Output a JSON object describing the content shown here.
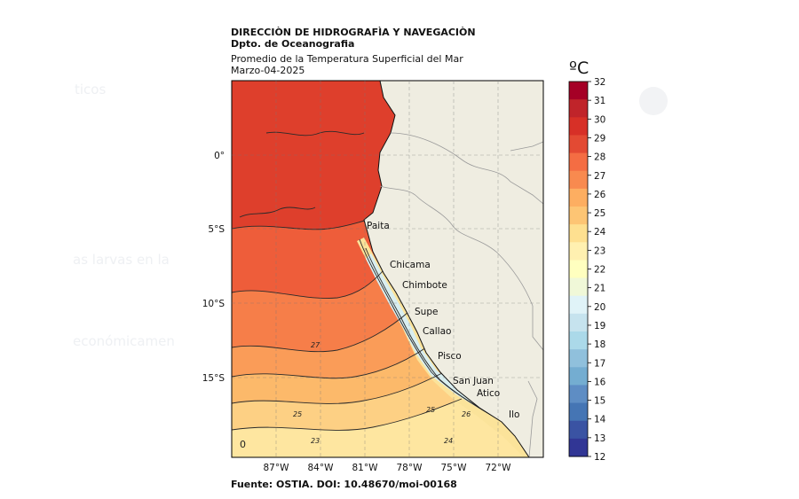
{
  "header": {
    "institution": "DIRECCIÒN DE HIDROGRAFÌA Y NAVEGACIÒN",
    "department": "Dpto. de Oceanografia",
    "product": "Promedio de la Temperatura Superficial del Mar",
    "date": "Marzo-04-2025"
  },
  "map": {
    "lon_range": [
      -90,
      -69
    ],
    "lat_range": [
      -20,
      5
    ],
    "lon_ticks": [
      "87°W",
      "84°W",
      "81°W",
      "78°W",
      "75°W",
      "72°W"
    ],
    "lat_ticks": [
      "0°",
      "5°S",
      "10°S",
      "15°S"
    ],
    "places": [
      "Paita",
      "Chicama",
      "Chimbote",
      "Supe",
      "Callao",
      "Pisco",
      "San Juan",
      "Atico",
      "Ilo"
    ],
    "contour_labels": [
      "27",
      "25",
      "25",
      "26",
      "23",
      "24",
      "0"
    ],
    "land_color": "#efede1",
    "border_color": "#9a9a9a"
  },
  "colorbar": {
    "unit": "ºC",
    "ticks": [
      "32",
      "31",
      "30",
      "29",
      "28",
      "27",
      "26",
      "25",
      "24",
      "23",
      "22",
      "21",
      "20",
      "19",
      "18",
      "17",
      "16",
      "15",
      "14",
      "13",
      "12"
    ],
    "colors": [
      "#a50026",
      "#c0242a",
      "#d73027",
      "#e34a33",
      "#f46d43",
      "#f88a4f",
      "#fdae61",
      "#fdc574",
      "#fee090",
      "#fff0b0",
      "#ffffbf",
      "#f0f8d8",
      "#e0f3f8",
      "#c6e3ee",
      "#abd9e9",
      "#90c0dc",
      "#74add1",
      "#5e8dc4",
      "#4575b4",
      "#3a53a3",
      "#313695"
    ]
  },
  "footer": {
    "source": "Fuente: OSTIA. DOI: 10.48670/moi-00168"
  }
}
